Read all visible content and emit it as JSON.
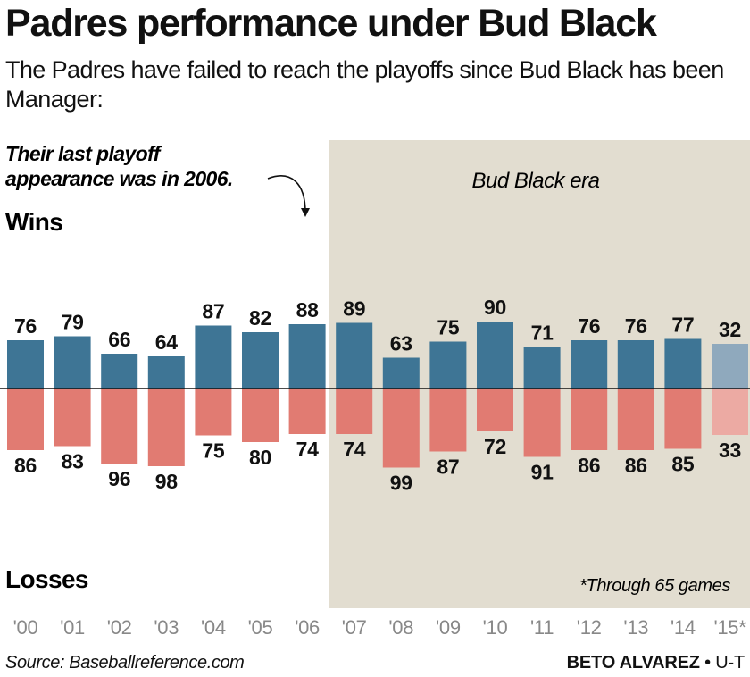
{
  "title": "Padres performance under Bud Black",
  "subtitle": "The Padres have failed to reach the playoffs since Bud Black has been Manager:",
  "annotation": [
    "Their last playoff",
    "appearance was in 2006."
  ],
  "era_label": "Bud Black era",
  "wins_label": "Wins",
  "losses_label": "Losses",
  "footnote": "*Through 65 games",
  "source": "Source: Baseballreference.com",
  "credit": {
    "name": "BETO ALVAREZ",
    "separator": " • ",
    "org": "U-T"
  },
  "colors": {
    "wins": "#3e7595",
    "losses": "#e17b72",
    "wins_partial": "#8fa9bd",
    "losses_partial": "#ecaaa3",
    "era_background": "#e2ddd0"
  },
  "chart_data": {
    "type": "bar",
    "categories": [
      "'00",
      "'01",
      "'02",
      "'03",
      "'04",
      "'05",
      "'06",
      "'07",
      "'08",
      "'09",
      "'10",
      "'11",
      "'12",
      "'13",
      "'14",
      "'15*"
    ],
    "series": [
      {
        "name": "Wins",
        "values": [
          76,
          79,
          66,
          64,
          87,
          82,
          88,
          89,
          63,
          75,
          90,
          71,
          76,
          76,
          77,
          32
        ]
      },
      {
        "name": "Losses",
        "values": [
          86,
          83,
          96,
          98,
          75,
          80,
          74,
          74,
          99,
          87,
          72,
          91,
          86,
          86,
          85,
          33
        ]
      }
    ],
    "highlight_range": [
      "'07",
      "'15*"
    ]
  }
}
